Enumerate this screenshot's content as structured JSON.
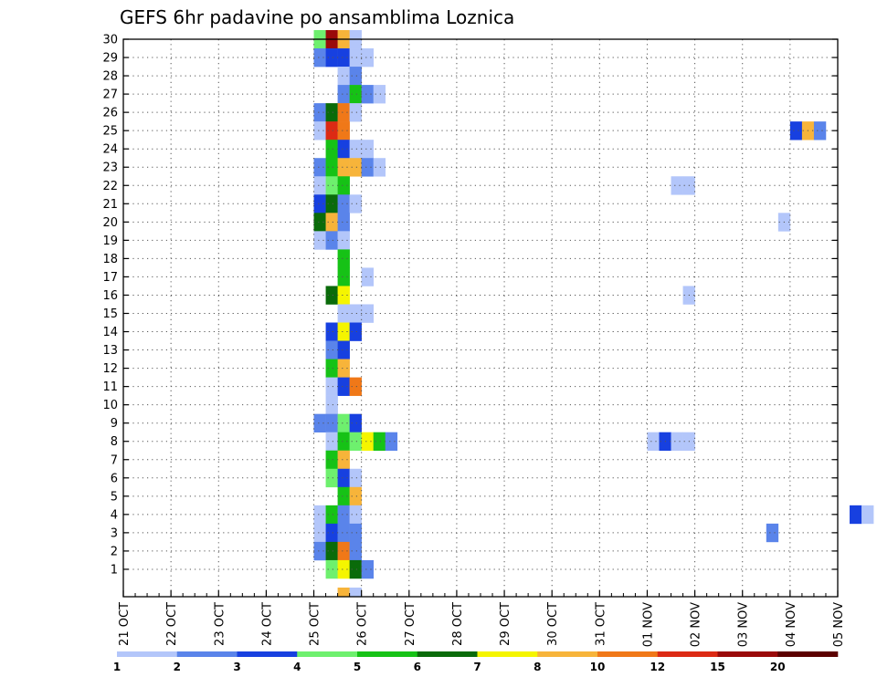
{
  "chart_data": {
    "type": "heatmap",
    "title": "GEFS 6hr padavine po ansamblima Loznica",
    "y_ticks": [
      "1",
      "2",
      "3",
      "4",
      "5",
      "6",
      "7",
      "8",
      "9",
      "10",
      "11",
      "12",
      "13",
      "14",
      "15",
      "16",
      "17",
      "18",
      "19",
      "20",
      "21",
      "22",
      "23",
      "24",
      "25",
      "26",
      "27",
      "28",
      "29",
      "30"
    ],
    "x_ticks": [
      "21 OCT",
      "22 OCT",
      "23 OCT",
      "24 OCT",
      "25 OCT",
      "26 OCT",
      "27 OCT",
      "28 OCT",
      "29 OCT",
      "30 OCT",
      "31 OCT",
      "01 NOV",
      "02 NOV",
      "03 NOV",
      "04 NOV",
      "05 NOV"
    ],
    "colorbar": {
      "colors": [
        "#b3c6fa",
        "#5a84ea",
        "#1740e0",
        "#6ef06e",
        "#16c216",
        "#0a6b0a",
        "#f5f500",
        "#f7b43a",
        "#f07818",
        "#dc2a14",
        "#9a0a0a",
        "#5c0000"
      ],
      "labels": [
        "1",
        "2",
        "3",
        "4",
        "5",
        "6",
        "7",
        "8",
        "10",
        "12",
        "15",
        "20"
      ]
    },
    "cells": [
      [
        -1,
        2,
        4
      ],
      [
        -1,
        3,
        8
      ],
      [
        -1,
        3,
        3
      ],
      [
        -1,
        9,
        2
      ],
      [
        -1,
        8,
        14
      ],
      [
        -1,
        9,
        15
      ],
      [
        -1,
        10,
        10
      ],
      [
        -1,
        12,
        4
      ],
      [
        -1,
        14,
        3
      ],
      [
        -1,
        16,
        13
      ],
      [
        -1,
        17,
        12
      ],
      [
        -1,
        18,
        11
      ],
      [
        0,
        0,
        0
      ],
      [
        0,
        1,
        0
      ],
      [
        0,
        2,
        12
      ],
      [
        0,
        2,
        12
      ],
      [
        0,
        3,
        12
      ],
      [
        0,
        4,
        12
      ],
      [
        0,
        2,
        9
      ],
      [
        0,
        13,
        12
      ],
      [
        0,
        3,
        8
      ],
      [
        0,
        3,
        7
      ],
      [
        0,
        11,
        3
      ],
      [
        0,
        15,
        12
      ],
      [
        0,
        16,
        3
      ],
      [
        0,
        17,
        12
      ],
      [
        0,
        18,
        12
      ],
      [
        0,
        19,
        10
      ],
      [
        0,
        21,
        11
      ],
      [
        0,
        23,
        2
      ],
      [
        0,
        24,
        3
      ],
      [
        0,
        26,
        10
      ],
      [
        0,
        27,
        9
      ],
      [
        0,
        28,
        12
      ],
      [
        0,
        29,
        12
      ],
      [
        1,
        0,
        1
      ],
      [
        1,
        1,
        1
      ],
      [
        1,
        2,
        1
      ],
      [
        1,
        3,
        1
      ],
      [
        1,
        4,
        1
      ],
      [
        1,
        5,
        1
      ],
      [
        1,
        6,
        1
      ],
      [
        1,
        9,
        1
      ],
      [
        1,
        19,
        1
      ],
      [
        1,
        22,
        1
      ],
      [
        1,
        25,
        1
      ],
      [
        1,
        28,
        1
      ]
    ]
  }
}
